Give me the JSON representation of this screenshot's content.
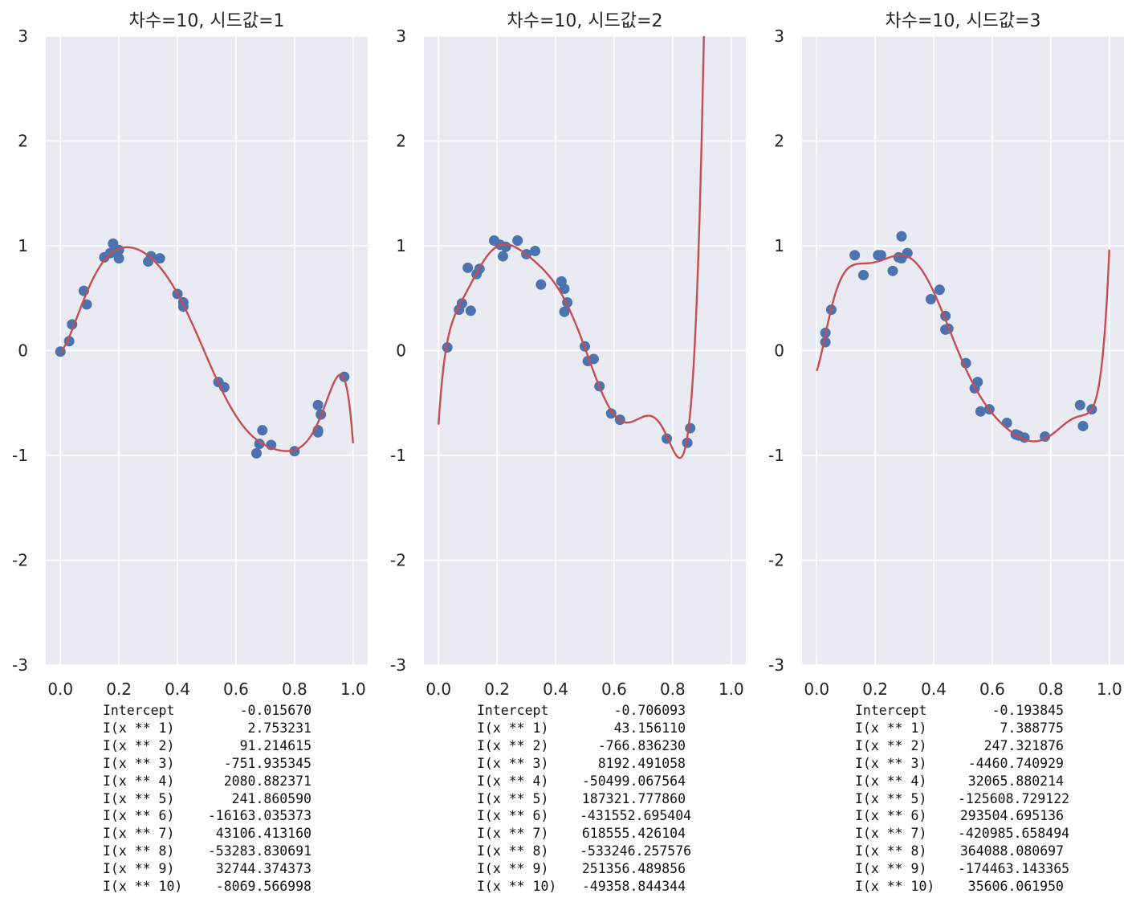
{
  "colors": {
    "axes_bg": "#eaeaf2",
    "grid": "#ffffff",
    "points": "#4c72b0",
    "curve": "#c44e52",
    "text": "#222222"
  },
  "chart_data": [
    {
      "type": "scatter",
      "title": "차수=10, 시드값=1",
      "xlim": [
        -0.05,
        1.05
      ],
      "ylim": [
        -3,
        3
      ],
      "xticks": [
        "0.0",
        "0.2",
        "0.4",
        "0.6",
        "0.8",
        "1.0"
      ],
      "yticks": [
        "3",
        "2",
        "1",
        "0",
        "-1",
        "-2",
        "-3"
      ],
      "grid": true,
      "points": [
        [
          0.0,
          -0.01
        ],
        [
          0.03,
          0.09
        ],
        [
          0.04,
          0.25
        ],
        [
          0.08,
          0.57
        ],
        [
          0.09,
          0.44
        ],
        [
          0.15,
          0.89
        ],
        [
          0.17,
          0.93
        ],
        [
          0.18,
          1.02
        ],
        [
          0.19,
          0.94
        ],
        [
          0.2,
          0.88
        ],
        [
          0.2,
          0.96
        ],
        [
          0.3,
          0.85
        ],
        [
          0.31,
          0.9
        ],
        [
          0.34,
          0.88
        ],
        [
          0.4,
          0.54
        ],
        [
          0.42,
          0.46
        ],
        [
          0.42,
          0.42
        ],
        [
          0.54,
          -0.3
        ],
        [
          0.56,
          -0.35
        ],
        [
          0.67,
          -0.98
        ],
        [
          0.68,
          -0.89
        ],
        [
          0.69,
          -0.76
        ],
        [
          0.72,
          -0.9
        ],
        [
          0.8,
          -0.96
        ],
        [
          0.88,
          -0.52
        ],
        [
          0.88,
          -0.76
        ],
        [
          0.88,
          -0.78
        ],
        [
          0.89,
          -0.61
        ],
        [
          0.97,
          -0.25
        ]
      ],
      "coefficients": [
        -0.01567,
        2.753231,
        91.214615,
        -751.935345,
        2080.882371,
        241.86059,
        -16163.035373,
        43106.41316,
        -53283.830691,
        32744.374373,
        -8069.566998
      ],
      "coef_table": [
        {
          "name": "Intercept",
          "value": "-0.015670"
        },
        {
          "name": "I(x ** 1)",
          "value": "2.753231"
        },
        {
          "name": "I(x ** 2)",
          "value": "91.214615"
        },
        {
          "name": "I(x ** 3)",
          "value": "-751.935345"
        },
        {
          "name": "I(x ** 4)",
          "value": "2080.882371"
        },
        {
          "name": "I(x ** 5)",
          "value": "241.860590"
        },
        {
          "name": "I(x ** 6)",
          "value": "-16163.035373"
        },
        {
          "name": "I(x ** 7)",
          "value": "43106.413160"
        },
        {
          "name": "I(x ** 8)",
          "value": "-53283.830691"
        },
        {
          "name": "I(x ** 9)",
          "value": "32744.374373"
        },
        {
          "name": "I(x ** 10)",
          "value": "-8069.566998"
        }
      ]
    },
    {
      "type": "scatter",
      "title": "차수=10, 시드값=2",
      "xlim": [
        -0.05,
        1.05
      ],
      "ylim": [
        -3,
        3
      ],
      "xticks": [
        "0.0",
        "0.2",
        "0.4",
        "0.6",
        "0.8",
        "1.0"
      ],
      "yticks": [
        "3",
        "2",
        "1",
        "0",
        "-1",
        "-2",
        "-3"
      ],
      "grid": true,
      "points": [
        [
          0.03,
          0.03
        ],
        [
          0.07,
          0.39
        ],
        [
          0.08,
          0.45
        ],
        [
          0.1,
          0.79
        ],
        [
          0.11,
          0.38
        ],
        [
          0.13,
          0.73
        ],
        [
          0.14,
          0.78
        ],
        [
          0.19,
          1.05
        ],
        [
          0.21,
          1.01
        ],
        [
          0.22,
          0.9
        ],
        [
          0.23,
          0.99
        ],
        [
          0.27,
          1.05
        ],
        [
          0.3,
          0.92
        ],
        [
          0.33,
          0.95
        ],
        [
          0.35,
          0.63
        ],
        [
          0.42,
          0.66
        ],
        [
          0.43,
          0.59
        ],
        [
          0.43,
          0.37
        ],
        [
          0.44,
          0.46
        ],
        [
          0.5,
          0.04
        ],
        [
          0.51,
          -0.1
        ],
        [
          0.53,
          -0.08
        ],
        [
          0.55,
          -0.34
        ],
        [
          0.59,
          -0.6
        ],
        [
          0.62,
          -0.66
        ],
        [
          0.78,
          -0.84
        ],
        [
          0.85,
          -0.88
        ],
        [
          0.86,
          -0.74
        ]
      ],
      "coefficients": [
        -0.706093,
        43.15611,
        -766.83623,
        8192.491058,
        -50499.067564,
        187321.77786,
        -431552.695404,
        618555.426104,
        -533246.257576,
        251356.489856,
        -49358.844344
      ],
      "coef_table": [
        {
          "name": "Intercept",
          "value": "-0.706093"
        },
        {
          "name": "I(x ** 1)",
          "value": "43.156110"
        },
        {
          "name": "I(x ** 2)",
          "value": "-766.836230"
        },
        {
          "name": "I(x ** 3)",
          "value": "8192.491058"
        },
        {
          "name": "I(x ** 4)",
          "value": "-50499.067564"
        },
        {
          "name": "I(x ** 5)",
          "value": "187321.777860"
        },
        {
          "name": "I(x ** 6)",
          "value": "-431552.695404"
        },
        {
          "name": "I(x ** 7)",
          "value": "618555.426104"
        },
        {
          "name": "I(x ** 8)",
          "value": "-533246.257576"
        },
        {
          "name": "I(x ** 9)",
          "value": "251356.489856"
        },
        {
          "name": "I(x ** 10)",
          "value": "-49358.844344"
        }
      ]
    },
    {
      "type": "scatter",
      "title": "차수=10, 시드값=3",
      "xlim": [
        -0.05,
        1.05
      ],
      "ylim": [
        -3,
        3
      ],
      "xticks": [
        "0.0",
        "0.2",
        "0.4",
        "0.6",
        "0.8",
        "1.0"
      ],
      "yticks": [
        "3",
        "2",
        "1",
        "0",
        "-1",
        "-2",
        "-3"
      ],
      "grid": true,
      "points": [
        [
          0.03,
          0.08
        ],
        [
          0.03,
          0.17
        ],
        [
          0.05,
          0.39
        ],
        [
          0.13,
          0.91
        ],
        [
          0.16,
          0.72
        ],
        [
          0.21,
          0.91
        ],
        [
          0.22,
          0.91
        ],
        [
          0.26,
          0.76
        ],
        [
          0.28,
          0.89
        ],
        [
          0.29,
          0.88
        ],
        [
          0.29,
          1.09
        ],
        [
          0.31,
          0.93
        ],
        [
          0.39,
          0.49
        ],
        [
          0.42,
          0.58
        ],
        [
          0.44,
          0.33
        ],
        [
          0.44,
          0.2
        ],
        [
          0.45,
          0.21
        ],
        [
          0.51,
          -0.12
        ],
        [
          0.54,
          -0.36
        ],
        [
          0.55,
          -0.3
        ],
        [
          0.56,
          -0.58
        ],
        [
          0.59,
          -0.56
        ],
        [
          0.65,
          -0.69
        ],
        [
          0.68,
          -0.8
        ],
        [
          0.69,
          -0.81
        ],
        [
          0.71,
          -0.83
        ],
        [
          0.78,
          -0.82
        ],
        [
          0.9,
          -0.52
        ],
        [
          0.91,
          -0.72
        ],
        [
          0.94,
          -0.56
        ]
      ],
      "coefficients": [
        -0.193845,
        7.388775,
        247.321876,
        -4460.740929,
        32065.880214,
        -125608.729122,
        293504.695136,
        -420985.658494,
        364088.080697,
        -174463.143365,
        35606.06195
      ],
      "coef_table": [
        {
          "name": "Intercept",
          "value": "-0.193845"
        },
        {
          "name": "I(x ** 1)",
          "value": "7.388775"
        },
        {
          "name": "I(x ** 2)",
          "value": "247.321876"
        },
        {
          "name": "I(x ** 3)",
          "value": "-4460.740929"
        },
        {
          "name": "I(x ** 4)",
          "value": "32065.880214"
        },
        {
          "name": "I(x ** 5)",
          "value": "-125608.729122"
        },
        {
          "name": "I(x ** 6)",
          "value": "293504.695136"
        },
        {
          "name": "I(x ** 7)",
          "value": "-420985.658494"
        },
        {
          "name": "I(x ** 8)",
          "value": "364088.080697"
        },
        {
          "name": "I(x ** 9)",
          "value": "-174463.143365"
        },
        {
          "name": "I(x ** 10)",
          "value": "35606.061950"
        }
      ]
    }
  ]
}
